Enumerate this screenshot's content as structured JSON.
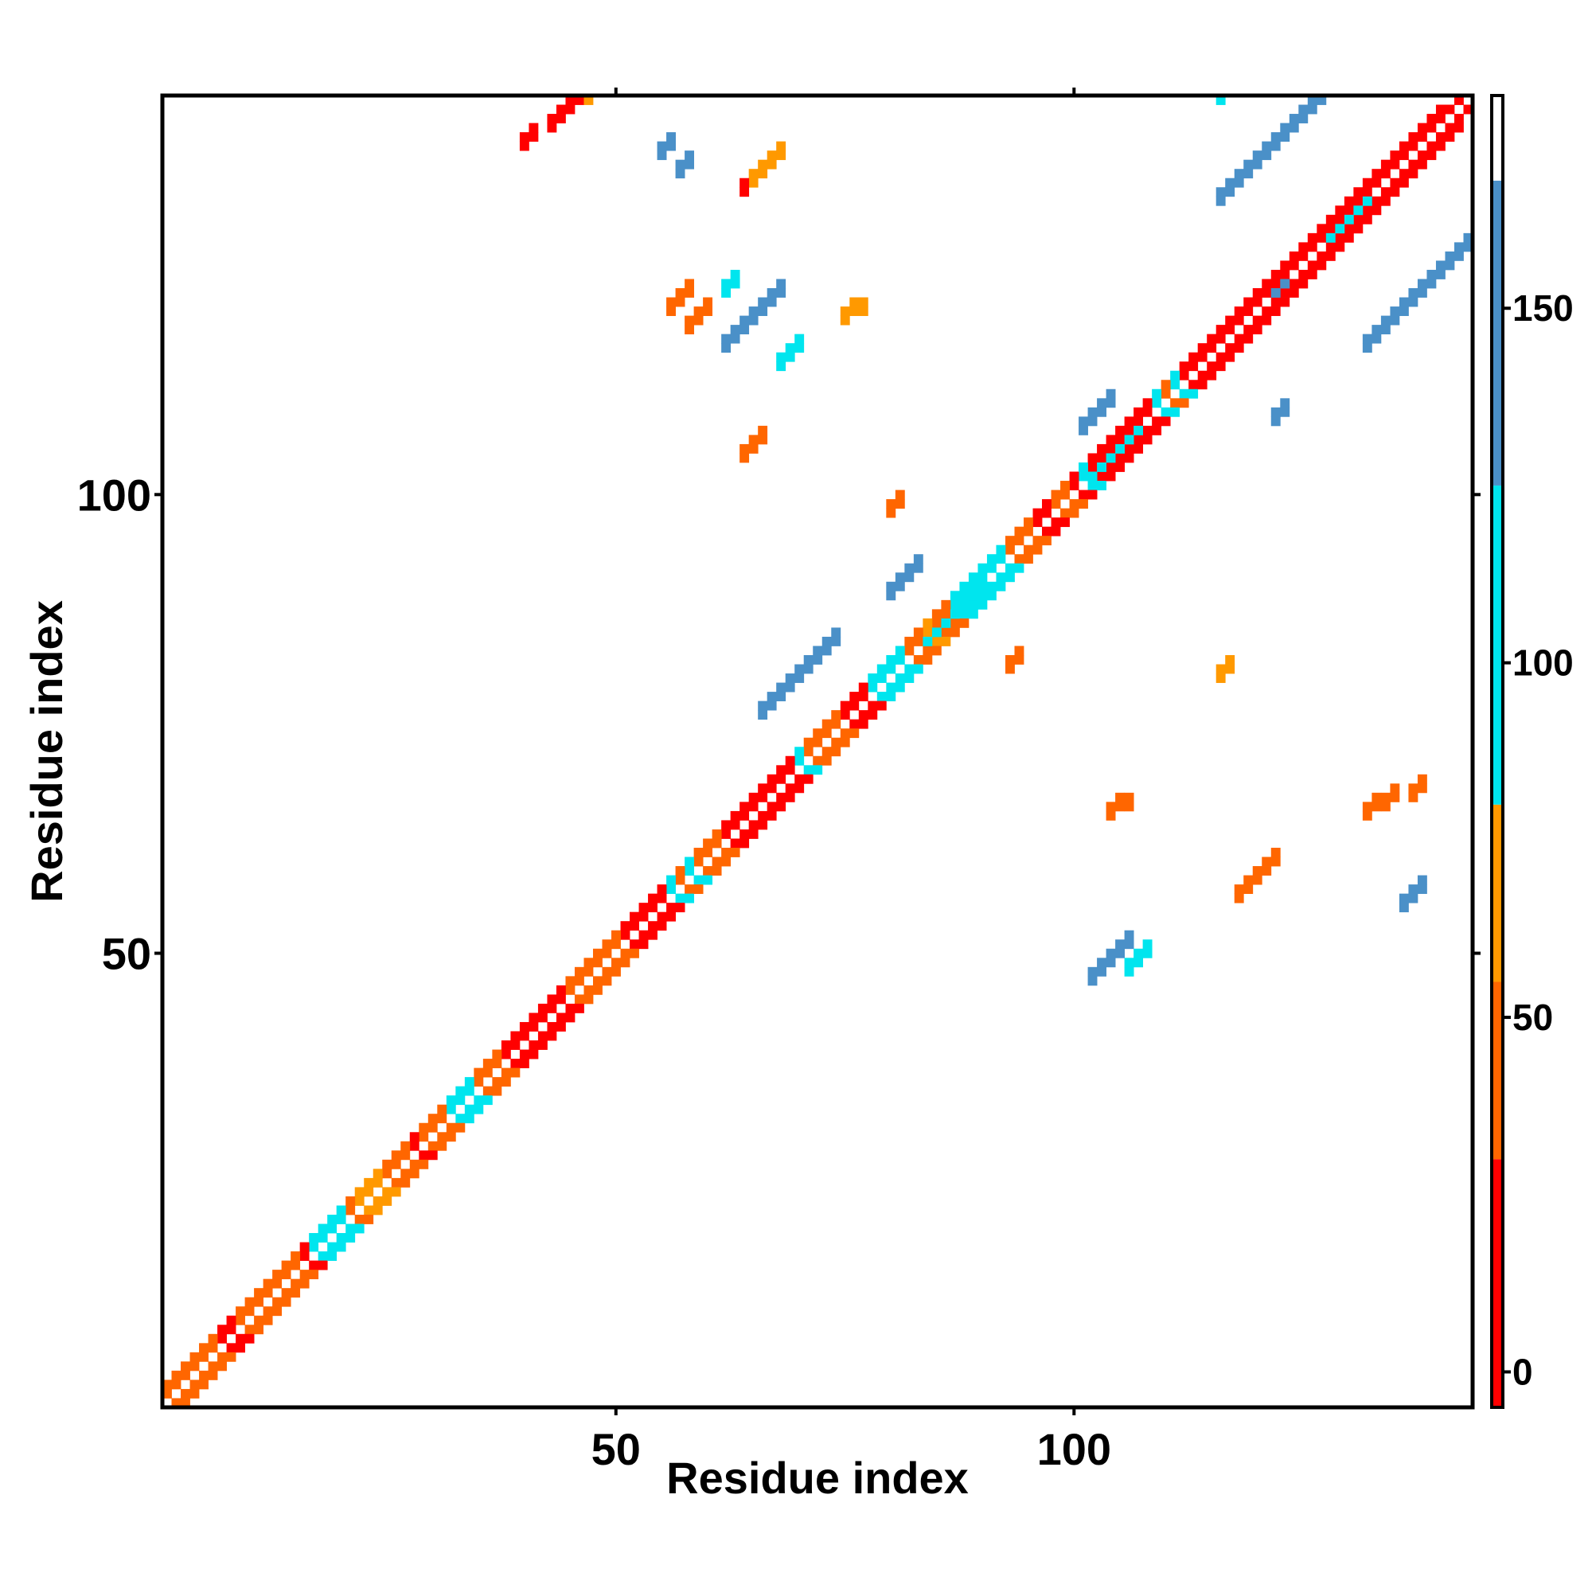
{
  "chart_data": {
    "type": "heatmap",
    "title": "",
    "xlabel": "Residue index",
    "ylabel": "Residue index",
    "xlim": [
      0.5,
      143.5
    ],
    "ylim": [
      0.5,
      143.5
    ],
    "xticks": [
      50,
      100
    ],
    "yticks": [
      50,
      100
    ],
    "symmetric": true,
    "colorbar": {
      "range": [
        -5,
        180
      ],
      "ticks": [
        0,
        50,
        100,
        150
      ],
      "bins": [
        {
          "from": -5,
          "to": 30,
          "color": "#ff0000"
        },
        {
          "from": 30,
          "to": 55,
          "color": "#ff6600"
        },
        {
          "from": 55,
          "to": 80,
          "color": "#ff9900"
        },
        {
          "from": 80,
          "to": 125,
          "color": "#00e5ee"
        },
        {
          "from": 125,
          "to": 168,
          "color": "#4a90c8"
        },
        {
          "from": 168,
          "to": 180,
          "color": "#ffffff"
        }
      ]
    },
    "color_key": {
      "r": "#ff0000",
      "o": "#ff6600",
      "y": "#ff9900",
      "c": "#00e5ee",
      "b": "#4a90c8"
    },
    "diagonal_pattern": {
      "offset1": [
        "o",
        "o",
        "o",
        "o",
        "o",
        "o",
        "r",
        "r",
        "o",
        "o",
        "o",
        "o",
        "o",
        "o",
        "o",
        "r",
        "c",
        "c",
        "c",
        "c",
        "o",
        "y",
        "y",
        "y",
        "o",
        "o",
        "o",
        "r",
        "o",
        "o",
        "o",
        "c",
        "c",
        "c",
        "o",
        "o",
        "o",
        "r",
        "r",
        "r",
        "r",
        "r",
        "r",
        "r",
        "o",
        "o",
        "o",
        "o",
        "o",
        "o",
        "r",
        "r",
        "r",
        "r",
        "r",
        "c",
        "o",
        "c",
        "o",
        "o",
        "o",
        "r",
        "r",
        "r",
        "r",
        "r",
        "r",
        "r",
        "r",
        "c",
        "o",
        "o",
        "o",
        "o",
        "r",
        "r",
        "r",
        "c",
        "c",
        "c",
        "c",
        "o",
        "o",
        "y",
        "o",
        "o",
        "c",
        "c",
        "c",
        "c",
        "c",
        "c",
        "o",
        "o",
        "o",
        "r",
        "r",
        "o",
        "o",
        "r",
        "c",
        "r",
        "r",
        "r",
        "r",
        "r",
        "r",
        "r",
        "c",
        "o",
        "c",
        "r",
        "r",
        "r",
        "r",
        "r",
        "r",
        "r",
        "r",
        "r",
        "r",
        "r",
        "r",
        "r",
        "r",
        "r",
        "r",
        "r",
        "r",
        "r",
        "r",
        "r",
        "r",
        "r",
        "r",
        "r",
        "r",
        "r",
        "r",
        "r",
        "r",
        "r"
      ],
      "offset2": [
        "o",
        "o",
        "o",
        "o",
        "o",
        "o",
        "r",
        "r",
        "o",
        "o",
        "o",
        "o",
        "o",
        "o",
        "o",
        "r",
        "c",
        "c",
        "c",
        "c",
        "o",
        "y",
        "y",
        "y",
        "o",
        "o",
        "o",
        "r",
        "o",
        "o",
        "o",
        "c",
        "c",
        "c",
        "o",
        "o",
        "o",
        "r",
        "r",
        "r",
        "r",
        "r",
        "r",
        "r",
        "o",
        "o",
        "o",
        "o",
        "o",
        "o",
        "r",
        "r",
        "r",
        "r",
        "r",
        "c",
        "o",
        "c",
        "o",
        "o",
        "o",
        "r",
        "r",
        "r",
        "r",
        "r",
        "r",
        "r",
        "r",
        "c",
        "o",
        "o",
        "o",
        "o",
        "r",
        "r",
        "r",
        "c",
        "c",
        "c",
        "c",
        "o",
        "o",
        "y",
        "o",
        "o",
        "c",
        "c",
        "c",
        "c",
        "c",
        "c",
        "o",
        "o",
        "o",
        "r",
        "r",
        "o",
        "o",
        "r",
        "c",
        "r",
        "r",
        "r",
        "r",
        "r",
        "r",
        "r",
        "c",
        "o",
        "c",
        "r",
        "r",
        "r",
        "r",
        "r",
        "r",
        "r",
        "r",
        "r",
        "r",
        "r",
        "r",
        "r",
        "r",
        "r",
        "r",
        "r",
        "r",
        "r",
        "r",
        "r",
        "r",
        "r",
        "r",
        "r",
        "r",
        "r",
        "r",
        "r"
      ]
    },
    "segments": [
      {
        "i": [
          102,
          106
        ],
        "j": [
          47,
          51
        ],
        "color": "b"
      },
      {
        "i": [
          106,
          108
        ],
        "j": [
          48,
          50
        ],
        "color": "c"
      },
      {
        "i": [
          62,
          68
        ],
        "j": [
          116,
          122
        ],
        "color": "b"
      },
      {
        "i": [
          62,
          63
        ],
        "j": [
          122,
          123
        ],
        "color": "c"
      },
      {
        "i": [
          68,
          70
        ],
        "j": [
          114,
          116
        ],
        "color": "c"
      },
      {
        "i": [
          66,
          74
        ],
        "j": [
          76,
          84
        ],
        "color": "b"
      },
      {
        "i": [
          72,
          75
        ],
        "j": [
          73,
          76
        ],
        "color": "c"
      },
      {
        "i": [
          84,
          90
        ],
        "j": [
          84,
          90
        ],
        "color": "c"
      },
      {
        "i": [
          80,
          83
        ],
        "j": [
          89,
          92
        ],
        "color": "b"
      },
      {
        "i": [
          102,
          107
        ],
        "j": [
          102,
          107
        ],
        "color": "c"
      },
      {
        "i": [
          101,
          104
        ],
        "j": [
          107,
          110
        ],
        "color": "b"
      },
      {
        "i": [
          128,
          132
        ],
        "j": [
          128,
          132
        ],
        "color": "c"
      },
      {
        "i": [
          116,
          128
        ],
        "j": [
          132,
          144
        ],
        "color": "b"
      },
      {
        "i": [
          116,
          117
        ],
        "j": [
          143,
          144
        ],
        "color": "c"
      },
      {
        "i": [
          132,
          143
        ],
        "j": [
          116,
          127
        ],
        "color": "b"
      },
      {
        "i": [
          43,
          46
        ],
        "j": [
          140,
          144
        ],
        "color": "r"
      },
      {
        "i": [
          44,
          47
        ],
        "j": [
          141,
          144
        ],
        "color": "r"
      },
      {
        "i": [
          47,
          49
        ],
        "j": [
          143,
          144
        ],
        "color": "y"
      },
      {
        "i": [
          40,
          41
        ],
        "j": [
          138,
          139
        ],
        "color": "r"
      },
      {
        "i": [
          55,
          56
        ],
        "j": [
          137,
          138
        ],
        "color": "b"
      },
      {
        "i": [
          57,
          58
        ],
        "j": [
          135,
          136
        ],
        "color": "b"
      },
      {
        "i": [
          65,
          68
        ],
        "j": [
          134,
          137
        ],
        "color": "y"
      },
      {
        "i": [
          64,
          65
        ],
        "j": [
          133,
          134
        ],
        "color": "r"
      },
      {
        "i": [
          56,
          58
        ],
        "j": [
          120,
          122
        ],
        "color": "o"
      },
      {
        "i": [
          58,
          60
        ],
        "j": [
          118,
          120
        ],
        "color": "o"
      },
      {
        "i": [
          75,
          77
        ],
        "j": [
          119,
          120
        ],
        "color": "y"
      },
      {
        "i": [
          122,
          123
        ],
        "j": [
          121,
          122
        ],
        "color": "b"
      },
      {
        "i": [
          64,
          66
        ],
        "j": [
          104,
          106
        ],
        "color": "o"
      },
      {
        "i": [
          80,
          81
        ],
        "j": [
          98,
          99
        ],
        "color": "o"
      },
      {
        "i": [
          93,
          94
        ],
        "j": [
          81,
          82
        ],
        "color": "o"
      },
      {
        "i": [
          116,
          117
        ],
        "j": [
          80,
          81
        ],
        "color": "y"
      },
      {
        "i": [
          137,
          138
        ],
        "j": [
          67,
          68
        ],
        "color": "o"
      },
      {
        "i": [
          132,
          135
        ],
        "j": [
          65,
          67
        ],
        "color": "o"
      },
      {
        "i": [
          104,
          106
        ],
        "j": [
          65,
          66
        ],
        "color": "o"
      },
      {
        "i": [
          118,
          120
        ],
        "j": [
          56,
          58
        ],
        "color": "o"
      },
      {
        "i": [
          120,
          122
        ],
        "j": [
          58,
          60
        ],
        "color": "o"
      },
      {
        "i": [
          136,
          138
        ],
        "j": [
          55,
          57
        ],
        "color": "b"
      },
      {
        "i": [
          122,
          123
        ],
        "j": [
          108,
          109
        ],
        "color": "b"
      }
    ]
  }
}
